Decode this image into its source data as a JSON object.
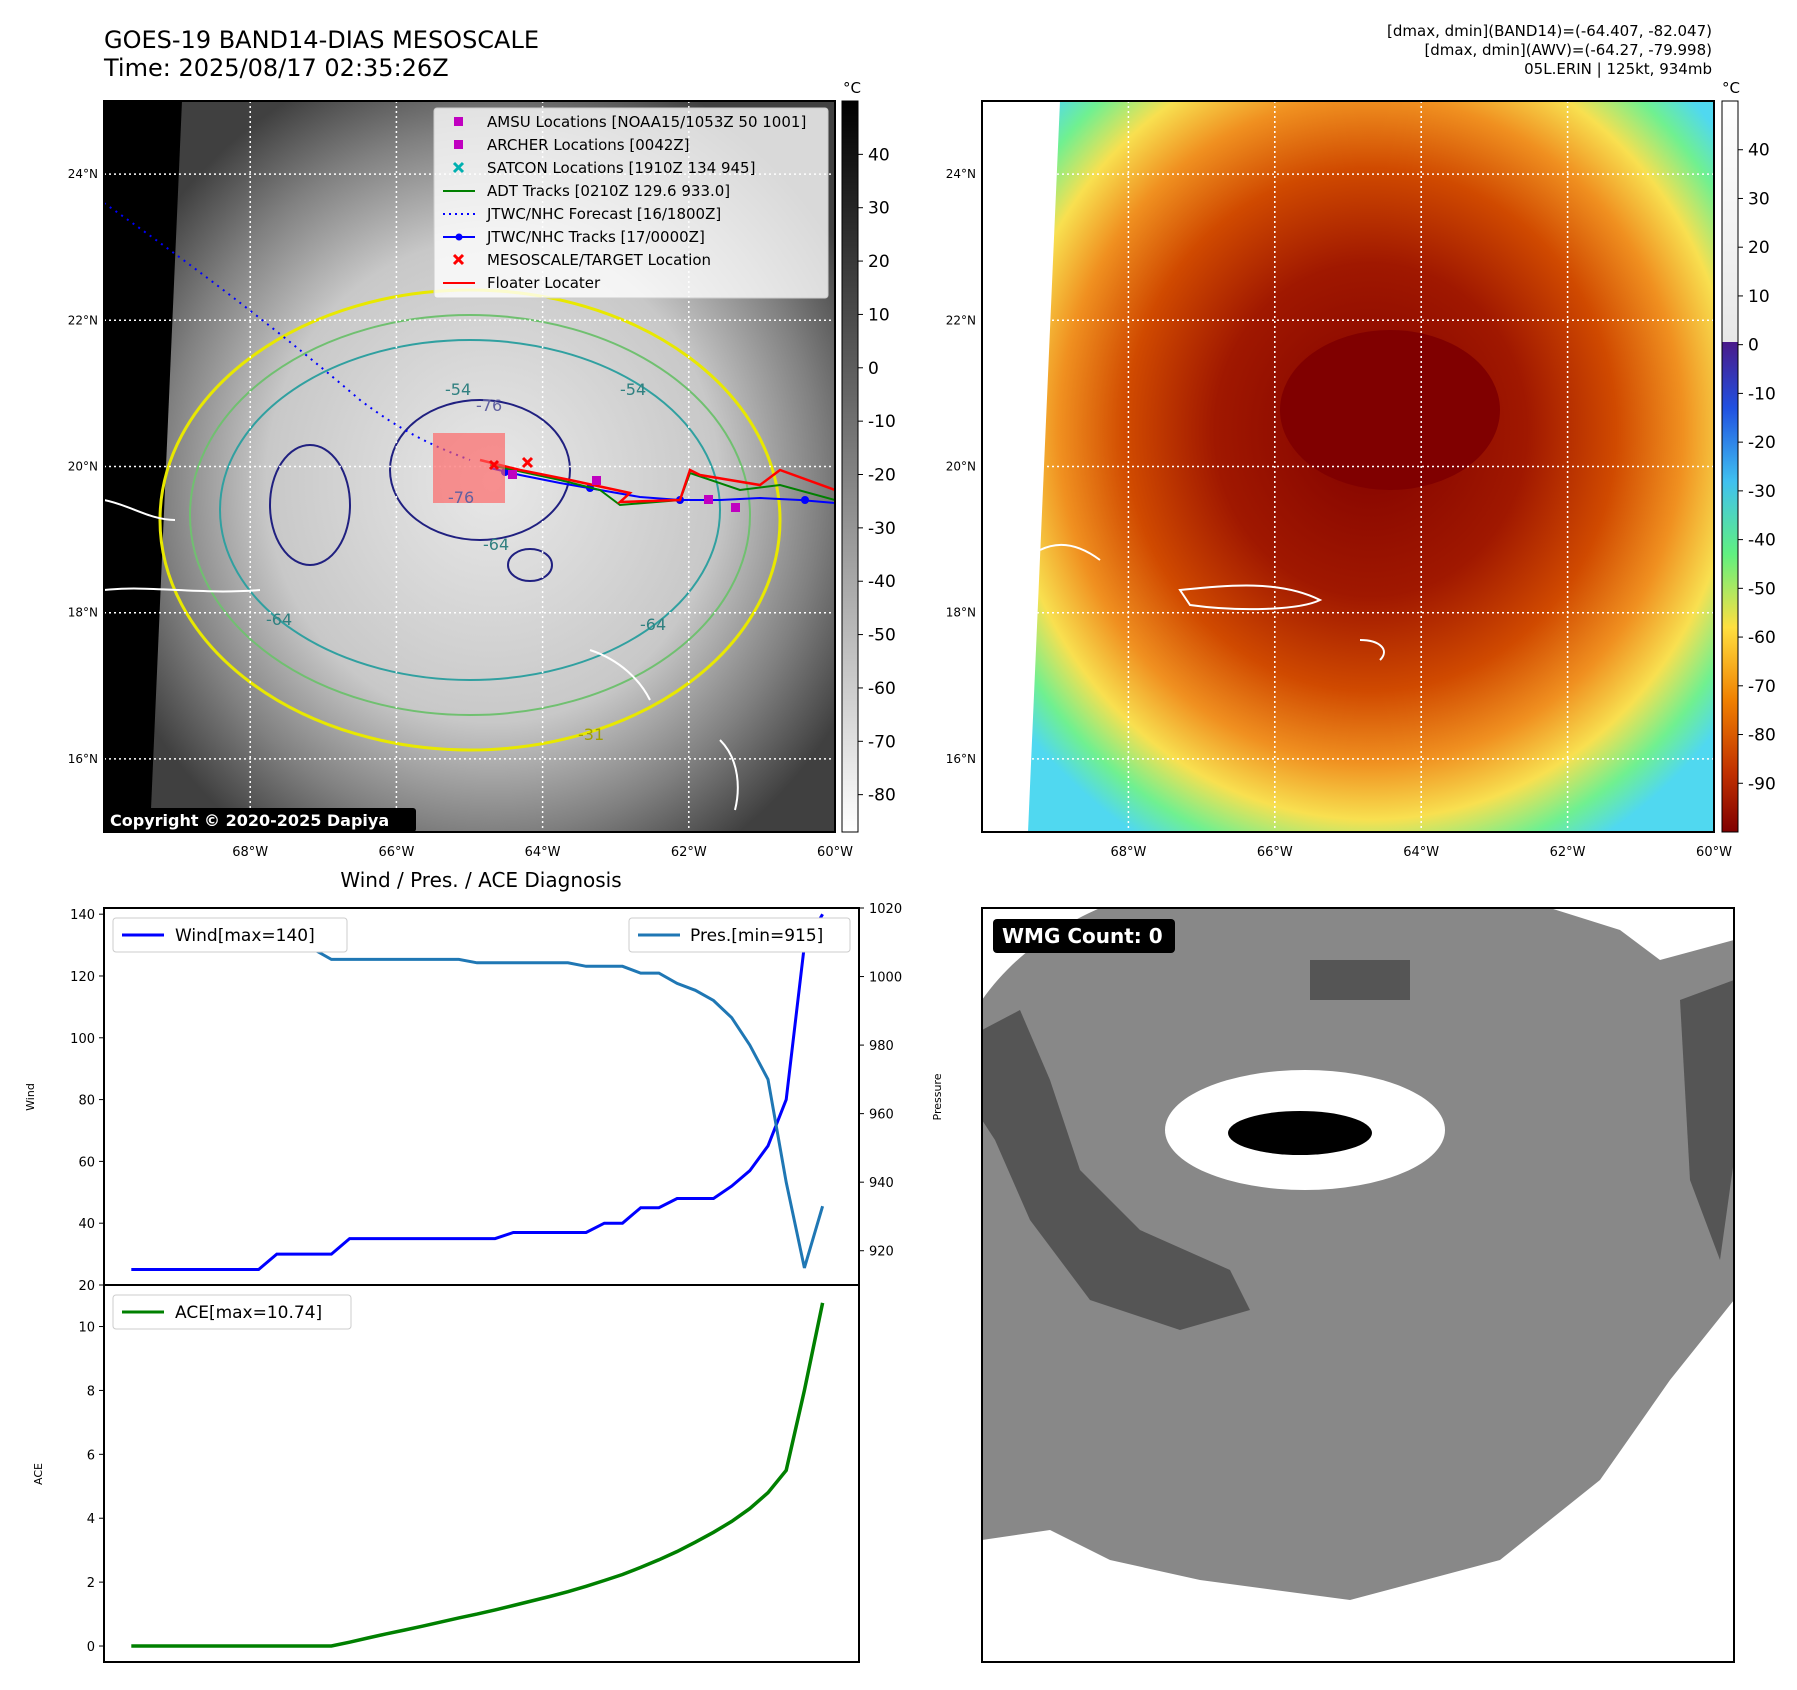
{
  "header": {
    "title": "GOES-19 BAND14-DIAS MESOSCALE",
    "time": "Time: 2025/08/17 02:35:26Z",
    "info": [
      "[dmax, dmin](BAND14)=(-64.407, -82.047)",
      "[dmax, dmin](AWV)=(-64.27, -79.998)",
      "05L.ERIN | 125kt, 934mb"
    ]
  },
  "maps": {
    "lat_labels": [
      "24°N",
      "22°N",
      "20°N",
      "18°N",
      "16°N"
    ],
    "lon_labels": [
      "68°W",
      "66°W",
      "64°W",
      "62°W",
      "60°W"
    ],
    "lat_values": [
      24,
      22,
      20,
      18,
      16
    ],
    "lon_values": [
      -68,
      -66,
      -64,
      -62,
      -60
    ],
    "copyright": "Copyright © 2020-2025 Dapiya",
    "contour_labels": [
      "-76",
      "-76",
      "-64",
      "-64",
      "-64",
      "-54",
      "-54",
      "-31"
    ],
    "legend": [
      {
        "label": "AMSU Locations [NOAA15/1053Z 50 1001]",
        "color": "#c000c0",
        "marker": "square"
      },
      {
        "label": "ARCHER Locations [0042Z]",
        "color": "#c000c0",
        "marker": "square"
      },
      {
        "label": "SATCON Locations [1910Z 134 945]",
        "color": "#00b0b0",
        "marker": "x"
      },
      {
        "label": "ADT Tracks [0210Z 129.6 933.0]",
        "color": "#008000",
        "marker": "line"
      },
      {
        "label": "JTWC/NHC Forecast [16/1800Z]",
        "color": "#0000ff",
        "marker": "dotted"
      },
      {
        "label": "JTWC/NHC Tracks [17/0000Z]",
        "color": "#0000ff",
        "marker": "line-dot"
      },
      {
        "label": "MESOSCALE/TARGET Location",
        "color": "#ff0000",
        "marker": "x"
      },
      {
        "label": "Floater Locater",
        "color": "#ff0000",
        "marker": "line"
      }
    ],
    "colorbar_gray": {
      "unit": "°C",
      "ticks": [
        40,
        30,
        20,
        10,
        0,
        -10,
        -20,
        -30,
        -40,
        -50,
        -60,
        -70,
        -80
      ]
    },
    "colorbar_color": {
      "unit": "°C",
      "ticks": [
        40,
        30,
        20,
        10,
        0,
        -10,
        -20,
        -30,
        -40,
        -50,
        -60,
        -70,
        -80,
        -90
      ]
    }
  },
  "chart_data": [
    {
      "type": "line",
      "title": "Wind / Pres. / ACE Diagnosis",
      "ylabel": "Wind",
      "ylabel_right": "Pressure",
      "ylim": [
        20,
        142
      ],
      "ylim_right": [
        910,
        1020
      ],
      "yticks": [
        20,
        40,
        60,
        80,
        100,
        120,
        140
      ],
      "yticks_right": [
        920,
        940,
        960,
        980,
        1000,
        1020
      ],
      "x": [
        0,
        1,
        2,
        3,
        4,
        5,
        6,
        7,
        8,
        9,
        10,
        11,
        12,
        13,
        14,
        15,
        16,
        17,
        18,
        19,
        20,
        21,
        22,
        23,
        24,
        25,
        26,
        27,
        28,
        29,
        30,
        31,
        32,
        33,
        34,
        35,
        36,
        37,
        38
      ],
      "series": [
        {
          "name": "Wind[max=140]",
          "color": "#0000ff",
          "values": [
            25,
            25,
            25,
            25,
            25,
            25,
            25,
            25,
            30,
            30,
            30,
            30,
            35,
            35,
            35,
            35,
            35,
            35,
            35,
            35,
            35,
            37,
            37,
            37,
            37,
            37,
            40,
            40,
            45,
            45,
            48,
            48,
            48,
            52,
            57,
            65,
            80,
            130,
            140
          ]
        },
        {
          "name": "Pres.[min=915]",
          "color": "#1f77b4",
          "axis": "right",
          "values": [
            1008,
            1008,
            1008,
            1008,
            1008,
            1008,
            1008,
            1008,
            1008,
            1008,
            1008,
            1005,
            1005,
            1005,
            1005,
            1005,
            1005,
            1005,
            1005,
            1004,
            1004,
            1004,
            1004,
            1004,
            1004,
            1003,
            1003,
            1003,
            1001,
            1001,
            998,
            996,
            993,
            988,
            980,
            970,
            940,
            915,
            933
          ]
        }
      ]
    },
    {
      "type": "line",
      "ylabel": "ACE",
      "ylim": [
        -0.5,
        11.3
      ],
      "yticks": [
        0,
        2,
        4,
        6,
        8,
        10
      ],
      "x": [
        0,
        1,
        2,
        3,
        4,
        5,
        6,
        7,
        8,
        9,
        10,
        11,
        12,
        13,
        14,
        15,
        16,
        17,
        18,
        19,
        20,
        21,
        22,
        23,
        24,
        25,
        26,
        27,
        28,
        29,
        30,
        31,
        32,
        33,
        34,
        35,
        36,
        37,
        38
      ],
      "series": [
        {
          "name": "ACE[max=10.74]",
          "color": "#008000",
          "values": [
            0,
            0,
            0,
            0,
            0,
            0,
            0,
            0,
            0,
            0,
            0,
            0,
            0.12,
            0.25,
            0.38,
            0.5,
            0.62,
            0.75,
            0.88,
            1.0,
            1.13,
            1.27,
            1.41,
            1.55,
            1.7,
            1.87,
            2.05,
            2.24,
            2.46,
            2.7,
            2.96,
            3.25,
            3.56,
            3.9,
            4.3,
            4.8,
            5.5,
            8.0,
            10.74
          ]
        }
      ]
    }
  ],
  "wmg": {
    "badge": "WMG Count: 0"
  }
}
